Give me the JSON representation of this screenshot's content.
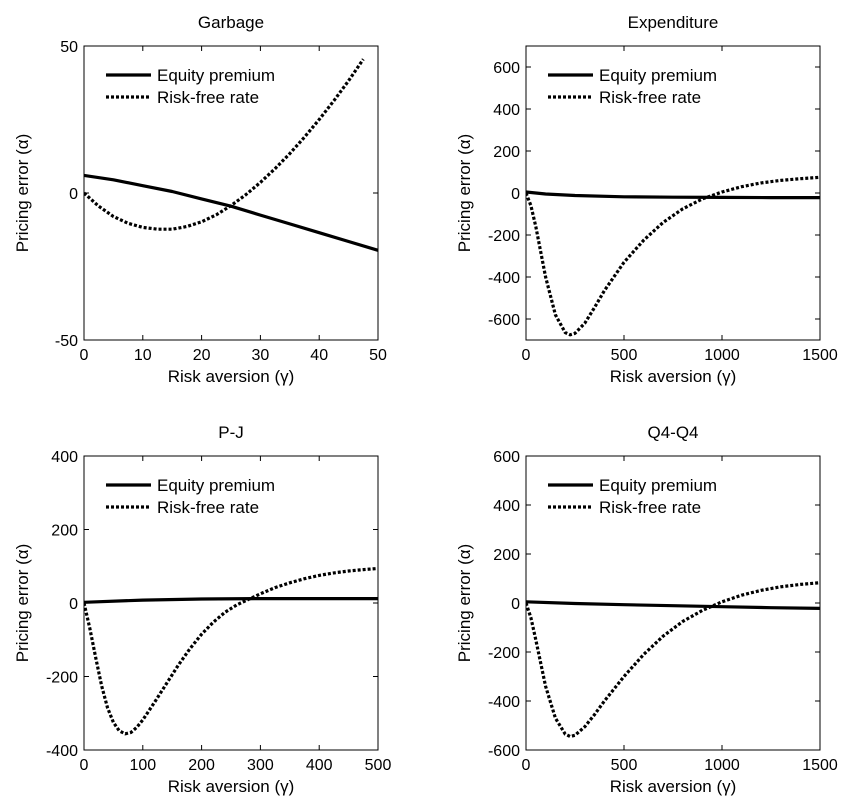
{
  "chart_data": [
    {
      "type": "line",
      "title": "Garbage",
      "xlabel": "Risk aversion (γ)",
      "ylabel": "Pricing error (α)",
      "xlim": [
        0,
        50
      ],
      "ylim": [
        -50,
        50
      ],
      "xticks": [
        0,
        10,
        20,
        30,
        40,
        50
      ],
      "yticks": [
        -50,
        0,
        50
      ],
      "grid": false,
      "legend_position": "top-left",
      "series": [
        {
          "name": "Equity premium",
          "style": "solid",
          "x": [
            0,
            5,
            10,
            15,
            20,
            25,
            30,
            35,
            40,
            45,
            50
          ],
          "y": [
            6,
            4.5,
            2.5,
            0.5,
            -2,
            -4.5,
            -7.5,
            -10.5,
            -13.5,
            -16.5,
            -19.5
          ]
        },
        {
          "name": "Risk-free rate",
          "style": "dotted",
          "x": [
            0,
            2.5,
            5,
            7.5,
            10,
            12.5,
            15,
            17.5,
            20,
            22.5,
            25,
            27.5,
            30,
            32.5,
            35,
            37.5,
            40,
            42.5,
            45,
            47.5
          ],
          "y": [
            0,
            -4.5,
            -8,
            -10.3,
            -11.7,
            -12.3,
            -12.3,
            -11.4,
            -9.8,
            -7.4,
            -4.3,
            -0.6,
            3.6,
            8.3,
            13.4,
            19,
            25,
            31.4,
            38.2,
            45.5
          ]
        }
      ]
    },
    {
      "type": "line",
      "title": "Expenditure",
      "xlabel": "Risk aversion (γ)",
      "ylabel": "Pricing error (α)",
      "xlim": [
        0,
        1500
      ],
      "ylim": [
        -700,
        700
      ],
      "xticks": [
        0,
        500,
        1000,
        1500
      ],
      "yticks": [
        -600,
        -400,
        -200,
        0,
        200,
        400,
        600
      ],
      "grid": false,
      "legend_position": "top-left",
      "series": [
        {
          "name": "Equity premium",
          "style": "solid",
          "x": [
            0,
            100,
            250,
            500,
            750,
            1000,
            1250,
            1500
          ],
          "y": [
            5,
            -5,
            -12,
            -18,
            -20,
            -21,
            -22,
            -22
          ]
        },
        {
          "name": "Risk-free rate",
          "style": "dotted",
          "x": [
            0,
            25,
            50,
            100,
            150,
            200,
            225,
            250,
            300,
            350,
            400,
            500,
            600,
            700,
            800,
            900,
            1000,
            1100,
            1200,
            1300,
            1400,
            1500
          ],
          "y": [
            0,
            -60,
            -160,
            -400,
            -580,
            -665,
            -675,
            -668,
            -620,
            -545,
            -465,
            -330,
            -225,
            -140,
            -75,
            -28,
            5,
            30,
            48,
            60,
            68,
            75
          ]
        }
      ]
    },
    {
      "type": "line",
      "title": "P-J",
      "xlabel": "Risk aversion (γ)",
      "ylabel": "Pricing error (α)",
      "xlim": [
        0,
        500
      ],
      "ylim": [
        -400,
        400
      ],
      "xticks": [
        0,
        100,
        200,
        300,
        400,
        500
      ],
      "yticks": [
        -400,
        -200,
        0,
        200,
        400
      ],
      "grid": false,
      "legend_position": "top-left",
      "series": [
        {
          "name": "Equity premium",
          "style": "solid",
          "x": [
            0,
            100,
            200,
            300,
            400,
            500
          ],
          "y": [
            2,
            8,
            11,
            12,
            12,
            12
          ]
        },
        {
          "name": "Risk-free rate",
          "style": "dotted",
          "x": [
            0,
            10,
            20,
            30,
            40,
            50,
            60,
            70,
            80,
            90,
            100,
            120,
            140,
            160,
            180,
            200,
            220,
            240,
            260,
            280,
            300,
            325,
            350,
            375,
            400,
            425,
            450,
            475,
            500
          ],
          "y": [
            0,
            -70,
            -150,
            -225,
            -285,
            -325,
            -348,
            -356,
            -352,
            -338,
            -318,
            -270,
            -220,
            -170,
            -125,
            -85,
            -52,
            -25,
            -5,
            10,
            25,
            42,
            55,
            66,
            75,
            82,
            87,
            91,
            94
          ]
        }
      ]
    },
    {
      "type": "line",
      "title": "Q4-Q4",
      "xlabel": "Risk aversion (γ)",
      "ylabel": "Pricing error (α)",
      "xlim": [
        0,
        1500
      ],
      "ylim": [
        -600,
        600
      ],
      "xticks": [
        0,
        500,
        1000,
        1500
      ],
      "yticks": [
        -600,
        -400,
        -200,
        0,
        200,
        400,
        600
      ],
      "grid": false,
      "legend_position": "top-left",
      "series": [
        {
          "name": "Equity premium",
          "style": "solid",
          "x": [
            0,
            250,
            500,
            750,
            1000,
            1250,
            1500
          ],
          "y": [
            5,
            -2,
            -7,
            -11,
            -15,
            -19,
            -22
          ]
        },
        {
          "name": "Risk-free rate",
          "style": "dotted",
          "x": [
            0,
            25,
            50,
            100,
            150,
            200,
            225,
            250,
            300,
            350,
            400,
            500,
            600,
            700,
            800,
            900,
            1000,
            1100,
            1200,
            1300,
            1400,
            1500
          ],
          "y": [
            0,
            -60,
            -150,
            -340,
            -470,
            -535,
            -545,
            -540,
            -505,
            -455,
            -400,
            -300,
            -210,
            -135,
            -75,
            -30,
            5,
            32,
            52,
            66,
            76,
            83
          ]
        }
      ]
    }
  ]
}
